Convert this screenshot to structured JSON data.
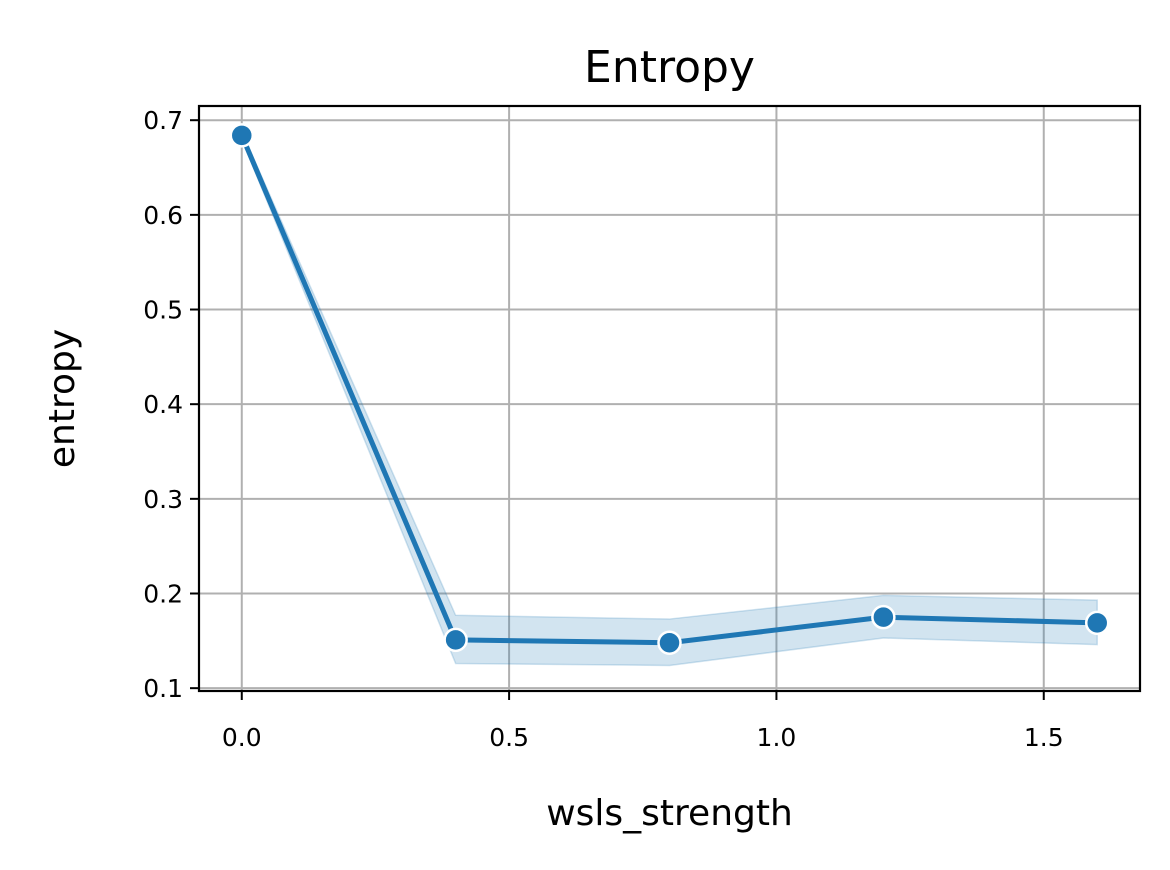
{
  "chart_data": {
    "type": "line",
    "title": "Entropy",
    "xlabel": "wsls_strength",
    "ylabel": "entropy",
    "xlim": [
      -0.08,
      1.68
    ],
    "ylim": [
      0.097,
      0.715
    ],
    "x_ticks": [
      0.0,
      0.5,
      1.0,
      1.5
    ],
    "x_tick_labels": [
      "0.0",
      "0.5",
      "1.0",
      "1.5"
    ],
    "y_ticks": [
      0.1,
      0.2,
      0.3,
      0.4,
      0.5,
      0.6,
      0.7
    ],
    "y_tick_labels": [
      "0.1",
      "0.2",
      "0.3",
      "0.4",
      "0.5",
      "0.6",
      "0.7"
    ],
    "grid": true,
    "series": [
      {
        "x": [
          0.0,
          0.4,
          0.8,
          1.2,
          1.6
        ],
        "y": [
          0.684,
          0.151,
          0.148,
          0.175,
          0.169
        ],
        "ci_lower": [
          0.68,
          0.126,
          0.124,
          0.153,
          0.146
        ],
        "ci_upper": [
          0.688,
          0.177,
          0.173,
          0.198,
          0.193
        ],
        "color": "#1f77b4",
        "marker": "circle"
      }
    ]
  }
}
